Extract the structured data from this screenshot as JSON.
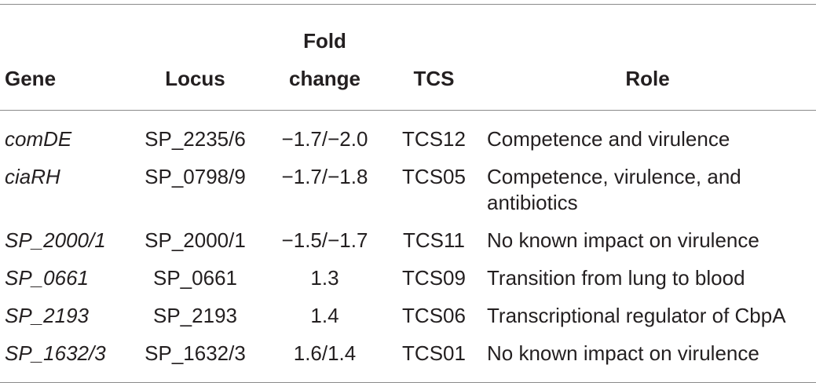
{
  "table": {
    "columns": [
      "Gene",
      "Locus",
      "Fold change",
      "TCS",
      "Role"
    ],
    "rows": [
      [
        "comDE",
        "SP_2235/6",
        "−1.7/−2.0",
        "TCS12",
        "Competence and virulence"
      ],
      [
        "ciaRH",
        "SP_0798/9",
        "−1.7/−1.8",
        "TCS05",
        "Competence, virulence, and antibiotics"
      ],
      [
        "SP_2000/1",
        "SP_2000/1",
        "−1.5/−1.7",
        "TCS11",
        "No known impact on virulence"
      ],
      [
        "SP_0661",
        "SP_0661",
        "1.3",
        "TCS09",
        "Transition from lung to blood"
      ],
      [
        "SP_2193",
        "SP_2193",
        "1.4",
        "TCS06",
        "Transcriptional regulator of CbpA"
      ],
      [
        "SP_1632/3",
        "SP_1632/3",
        "1.6/1.4",
        "TCS01",
        "No known impact on virulence"
      ]
    ]
  }
}
